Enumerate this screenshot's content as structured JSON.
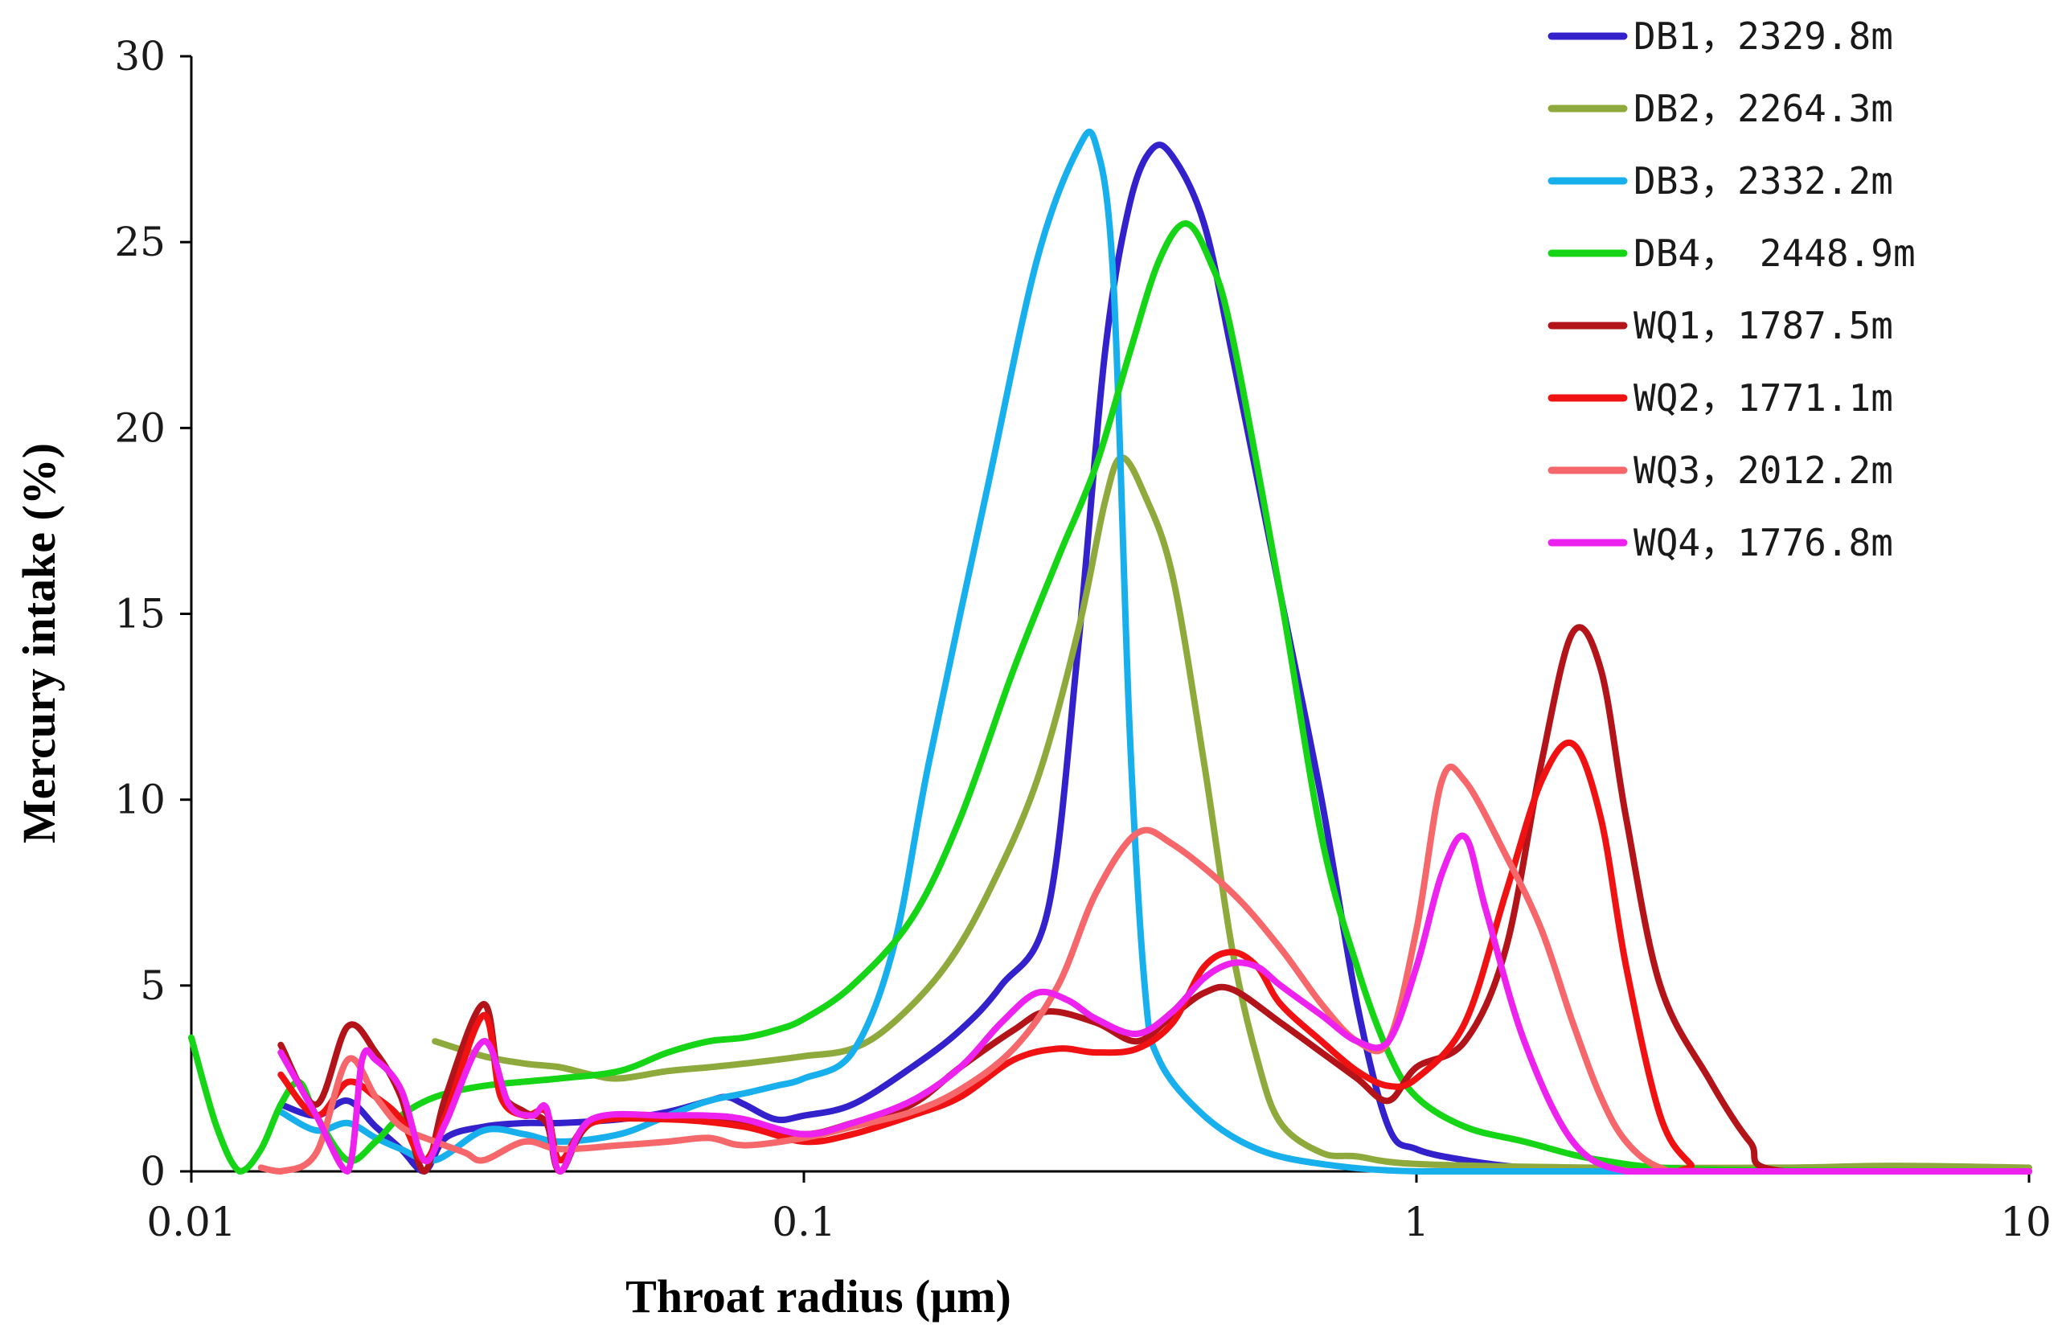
{
  "chart_data": {
    "type": "line",
    "title": "",
    "xlabel": "Throat radius (μm)",
    "ylabel": "Mercury intake (%)",
    "xscale": "log",
    "xlim": [
      0.01,
      10
    ],
    "ylim": [
      0,
      30
    ],
    "x_ticks": [
      0.01,
      0.1,
      1,
      10
    ],
    "x_tick_labels": [
      "0.01",
      "0.1",
      "1",
      "10"
    ],
    "y_ticks": [
      0,
      5,
      10,
      15,
      20,
      25,
      30
    ],
    "y_tick_labels": [
      "0",
      "5",
      "10",
      "15",
      "20",
      "25",
      "30"
    ],
    "legend_position": "top-right",
    "series": [
      {
        "name": "DB1",
        "label": "DB1，2329.8m",
        "color": "#3322cc",
        "points": [
          [
            0.014,
            1.8
          ],
          [
            0.016,
            1.5
          ],
          [
            0.018,
            1.9
          ],
          [
            0.02,
            1.2
          ],
          [
            0.022,
            0.6
          ],
          [
            0.024,
            0.0
          ],
          [
            0.026,
            0.9
          ],
          [
            0.03,
            1.2
          ],
          [
            0.035,
            1.3
          ],
          [
            0.04,
            1.3
          ],
          [
            0.05,
            1.4
          ],
          [
            0.06,
            1.6
          ],
          [
            0.07,
            1.9
          ],
          [
            0.075,
            2.0
          ],
          [
            0.08,
            1.8
          ],
          [
            0.09,
            1.4
          ],
          [
            0.1,
            1.5
          ],
          [
            0.12,
            1.8
          ],
          [
            0.15,
            2.8
          ],
          [
            0.18,
            3.8
          ],
          [
            0.21,
            5.0
          ],
          [
            0.25,
            7.0
          ],
          [
            0.28,
            14.0
          ],
          [
            0.31,
            22.0
          ],
          [
            0.34,
            26.0
          ],
          [
            0.37,
            27.5
          ],
          [
            0.4,
            27.3
          ],
          [
            0.45,
            25.5
          ],
          [
            0.5,
            22.0
          ],
          [
            0.6,
            15.5
          ],
          [
            0.7,
            10.0
          ],
          [
            0.8,
            4.5
          ],
          [
            0.9,
            1.2
          ],
          [
            1.0,
            0.6
          ],
          [
            1.2,
            0.3
          ],
          [
            1.5,
            0.1
          ],
          [
            2.0,
            0.0
          ],
          [
            5.0,
            0.0
          ],
          [
            10.0,
            0.0
          ]
        ]
      },
      {
        "name": "DB2",
        "label": "DB2，2264.3m",
        "color": "#8faa3c",
        "points": [
          [
            0.025,
            3.5
          ],
          [
            0.03,
            3.1
          ],
          [
            0.035,
            2.9
          ],
          [
            0.04,
            2.8
          ],
          [
            0.045,
            2.6
          ],
          [
            0.05,
            2.5
          ],
          [
            0.06,
            2.7
          ],
          [
            0.07,
            2.8
          ],
          [
            0.08,
            2.9
          ],
          [
            0.09,
            3.0
          ],
          [
            0.1,
            3.1
          ],
          [
            0.12,
            3.3
          ],
          [
            0.14,
            4.0
          ],
          [
            0.17,
            5.5
          ],
          [
            0.2,
            7.5
          ],
          [
            0.24,
            10.5
          ],
          [
            0.28,
            14.5
          ],
          [
            0.31,
            18.0
          ],
          [
            0.33,
            19.2
          ],
          [
            0.36,
            18.2
          ],
          [
            0.4,
            16.0
          ],
          [
            0.45,
            11.0
          ],
          [
            0.5,
            6.0
          ],
          [
            0.55,
            3.0
          ],
          [
            0.6,
            1.3
          ],
          [
            0.7,
            0.5
          ],
          [
            0.8,
            0.4
          ],
          [
            1.0,
            0.2
          ],
          [
            2.0,
            0.1
          ],
          [
            4.0,
            0.1
          ],
          [
            6.0,
            0.15
          ],
          [
            10.0,
            0.1
          ]
        ]
      },
      {
        "name": "DB3",
        "label": "DB3，2332.2m",
        "color": "#17b0ec",
        "points": [
          [
            0.014,
            1.6
          ],
          [
            0.016,
            1.1
          ],
          [
            0.018,
            1.3
          ],
          [
            0.02,
            0.9
          ],
          [
            0.022,
            0.6
          ],
          [
            0.025,
            0.3
          ],
          [
            0.03,
            1.1
          ],
          [
            0.035,
            1.0
          ],
          [
            0.04,
            0.8
          ],
          [
            0.05,
            1.0
          ],
          [
            0.06,
            1.5
          ],
          [
            0.07,
            1.9
          ],
          [
            0.08,
            2.1
          ],
          [
            0.09,
            2.3
          ],
          [
            0.1,
            2.5
          ],
          [
            0.12,
            3.2
          ],
          [
            0.14,
            6.0
          ],
          [
            0.16,
            11.0
          ],
          [
            0.2,
            18.5
          ],
          [
            0.24,
            24.5
          ],
          [
            0.28,
            27.5
          ],
          [
            0.3,
            27.6
          ],
          [
            0.32,
            24.0
          ],
          [
            0.34,
            12.0
          ],
          [
            0.36,
            5.0
          ],
          [
            0.38,
            3.0
          ],
          [
            0.45,
            1.5
          ],
          [
            0.55,
            0.6
          ],
          [
            0.7,
            0.2
          ],
          [
            1.0,
            0.0
          ],
          [
            2.0,
            0.0
          ],
          [
            10.0,
            0.0
          ]
        ]
      },
      {
        "name": "DB4",
        "label": "DB4， 2448.9m",
        "color": "#16d516",
        "points": [
          [
            0.01,
            3.6
          ],
          [
            0.011,
            1.2
          ],
          [
            0.012,
            0.0
          ],
          [
            0.013,
            0.6
          ],
          [
            0.014,
            1.8
          ],
          [
            0.015,
            2.4
          ],
          [
            0.016,
            1.5
          ],
          [
            0.018,
            0.3
          ],
          [
            0.02,
            0.8
          ],
          [
            0.022,
            1.5
          ],
          [
            0.025,
            2.0
          ],
          [
            0.03,
            2.3
          ],
          [
            0.04,
            2.5
          ],
          [
            0.05,
            2.7
          ],
          [
            0.06,
            3.2
          ],
          [
            0.07,
            3.5
          ],
          [
            0.08,
            3.6
          ],
          [
            0.09,
            3.8
          ],
          [
            0.1,
            4.1
          ],
          [
            0.12,
            5.0
          ],
          [
            0.15,
            6.8
          ],
          [
            0.18,
            9.5
          ],
          [
            0.22,
            13.5
          ],
          [
            0.26,
            16.5
          ],
          [
            0.3,
            19.0
          ],
          [
            0.34,
            22.0
          ],
          [
            0.38,
            24.5
          ],
          [
            0.42,
            25.5
          ],
          [
            0.46,
            24.5
          ],
          [
            0.5,
            22.5
          ],
          [
            0.6,
            15.5
          ],
          [
            0.7,
            9.0
          ],
          [
            0.8,
            5.5
          ],
          [
            0.9,
            3.2
          ],
          [
            1.0,
            2.0
          ],
          [
            1.2,
            1.2
          ],
          [
            1.5,
            0.8
          ],
          [
            2.0,
            0.3
          ],
          [
            3.0,
            0.05
          ],
          [
            10.0,
            0.0
          ]
        ]
      },
      {
        "name": "WQ1",
        "label": "WQ1，1787.5m",
        "color": "#b3141a",
        "points": [
          [
            0.014,
            3.4
          ],
          [
            0.016,
            1.8
          ],
          [
            0.018,
            3.9
          ],
          [
            0.02,
            3.2
          ],
          [
            0.022,
            2.0
          ],
          [
            0.024,
            0.0
          ],
          [
            0.026,
            2.0
          ],
          [
            0.03,
            4.5
          ],
          [
            0.032,
            2.2
          ],
          [
            0.035,
            1.6
          ],
          [
            0.038,
            1.3
          ],
          [
            0.04,
            0.0
          ],
          [
            0.045,
            1.3
          ],
          [
            0.06,
            1.5
          ],
          [
            0.08,
            1.3
          ],
          [
            0.1,
            1.0
          ],
          [
            0.12,
            1.3
          ],
          [
            0.15,
            1.8
          ],
          [
            0.18,
            2.8
          ],
          [
            0.22,
            3.8
          ],
          [
            0.25,
            4.3
          ],
          [
            0.3,
            4.0
          ],
          [
            0.35,
            3.5
          ],
          [
            0.4,
            4.2
          ],
          [
            0.45,
            4.8
          ],
          [
            0.5,
            4.9
          ],
          [
            0.6,
            4.0
          ],
          [
            0.7,
            3.2
          ],
          [
            0.8,
            2.5
          ],
          [
            0.9,
            1.9
          ],
          [
            1.0,
            2.8
          ],
          [
            1.2,
            3.5
          ],
          [
            1.4,
            6.0
          ],
          [
            1.6,
            11.0
          ],
          [
            1.8,
            14.5
          ],
          [
            2.0,
            13.5
          ],
          [
            2.2,
            9.5
          ],
          [
            2.5,
            5.0
          ],
          [
            3.0,
            2.5
          ],
          [
            3.5,
            0.8
          ],
          [
            4.0,
            0.0
          ],
          [
            10.0,
            0.0
          ]
        ]
      },
      {
        "name": "WQ2",
        "label": "WQ2，1771.1m",
        "color": "#f01212",
        "points": [
          [
            0.014,
            2.6
          ],
          [
            0.016,
            1.5
          ],
          [
            0.018,
            2.4
          ],
          [
            0.02,
            2.0
          ],
          [
            0.022,
            1.4
          ],
          [
            0.024,
            0.3
          ],
          [
            0.026,
            1.5
          ],
          [
            0.03,
            4.2
          ],
          [
            0.032,
            2.0
          ],
          [
            0.035,
            1.5
          ],
          [
            0.038,
            1.6
          ],
          [
            0.04,
            0.3
          ],
          [
            0.045,
            1.3
          ],
          [
            0.06,
            1.4
          ],
          [
            0.08,
            1.2
          ],
          [
            0.1,
            0.8
          ],
          [
            0.12,
            1.0
          ],
          [
            0.15,
            1.5
          ],
          [
            0.18,
            2.0
          ],
          [
            0.22,
            3.0
          ],
          [
            0.26,
            3.3
          ],
          [
            0.3,
            3.2
          ],
          [
            0.35,
            3.3
          ],
          [
            0.4,
            4.0
          ],
          [
            0.45,
            5.5
          ],
          [
            0.5,
            5.9
          ],
          [
            0.55,
            5.5
          ],
          [
            0.6,
            4.5
          ],
          [
            0.7,
            3.5
          ],
          [
            0.8,
            2.7
          ],
          [
            0.9,
            2.3
          ],
          [
            1.0,
            2.5
          ],
          [
            1.2,
            4.0
          ],
          [
            1.4,
            7.5
          ],
          [
            1.6,
            10.5
          ],
          [
            1.8,
            11.5
          ],
          [
            2.0,
            9.5
          ],
          [
            2.2,
            5.5
          ],
          [
            2.5,
            1.5
          ],
          [
            2.8,
            0.2
          ],
          [
            3.0,
            0.0
          ],
          [
            10.0,
            0.0
          ]
        ]
      },
      {
        "name": "WQ3",
        "label": "WQ3，2012.2m",
        "color": "#f5676a",
        "points": [
          [
            0.013,
            0.1
          ],
          [
            0.014,
            0.0
          ],
          [
            0.016,
            0.5
          ],
          [
            0.018,
            3.0
          ],
          [
            0.02,
            2.0
          ],
          [
            0.022,
            1.2
          ],
          [
            0.025,
            0.8
          ],
          [
            0.028,
            0.5
          ],
          [
            0.03,
            0.3
          ],
          [
            0.035,
            0.8
          ],
          [
            0.04,
            0.6
          ],
          [
            0.05,
            0.7
          ],
          [
            0.06,
            0.8
          ],
          [
            0.07,
            0.9
          ],
          [
            0.08,
            0.7
          ],
          [
            0.1,
            0.9
          ],
          [
            0.12,
            1.2
          ],
          [
            0.15,
            1.6
          ],
          [
            0.18,
            2.2
          ],
          [
            0.22,
            3.3
          ],
          [
            0.26,
            5.0
          ],
          [
            0.3,
            7.5
          ],
          [
            0.35,
            9.1
          ],
          [
            0.4,
            8.8
          ],
          [
            0.5,
            7.5
          ],
          [
            0.6,
            6.0
          ],
          [
            0.7,
            4.5
          ],
          [
            0.8,
            3.5
          ],
          [
            0.9,
            3.5
          ],
          [
            1.0,
            6.5
          ],
          [
            1.1,
            10.5
          ],
          [
            1.2,
            10.5
          ],
          [
            1.4,
            8.5
          ],
          [
            1.6,
            6.5
          ],
          [
            1.8,
            4.0
          ],
          [
            2.0,
            2.0
          ],
          [
            2.2,
            0.8
          ],
          [
            2.5,
            0.1
          ],
          [
            3.0,
            0.0
          ],
          [
            10.0,
            0.0
          ]
        ]
      },
      {
        "name": "WQ4",
        "label": "WQ4，1776.8m",
        "color": "#ee22ee",
        "points": [
          [
            0.014,
            3.2
          ],
          [
            0.016,
            1.5
          ],
          [
            0.018,
            0.0
          ],
          [
            0.019,
            3.0
          ],
          [
            0.02,
            3.0
          ],
          [
            0.022,
            2.2
          ],
          [
            0.024,
            0.3
          ],
          [
            0.026,
            1.3
          ],
          [
            0.03,
            3.5
          ],
          [
            0.033,
            1.8
          ],
          [
            0.036,
            1.5
          ],
          [
            0.038,
            1.7
          ],
          [
            0.04,
            0.0
          ],
          [
            0.045,
            1.4
          ],
          [
            0.06,
            1.5
          ],
          [
            0.07,
            1.5
          ],
          [
            0.08,
            1.4
          ],
          [
            0.1,
            1.0
          ],
          [
            0.12,
            1.3
          ],
          [
            0.15,
            1.9
          ],
          [
            0.18,
            2.8
          ],
          [
            0.21,
            4.0
          ],
          [
            0.24,
            4.8
          ],
          [
            0.27,
            4.6
          ],
          [
            0.3,
            4.1
          ],
          [
            0.35,
            3.7
          ],
          [
            0.4,
            4.3
          ],
          [
            0.45,
            5.2
          ],
          [
            0.5,
            5.6
          ],
          [
            0.55,
            5.5
          ],
          [
            0.6,
            5.0
          ],
          [
            0.7,
            4.2
          ],
          [
            0.8,
            3.5
          ],
          [
            0.9,
            3.5
          ],
          [
            1.0,
            5.5
          ],
          [
            1.1,
            8.0
          ],
          [
            1.2,
            9.0
          ],
          [
            1.3,
            7.0
          ],
          [
            1.5,
            3.5
          ],
          [
            1.8,
            0.8
          ],
          [
            2.2,
            0.0
          ],
          [
            3.0,
            0.0
          ],
          [
            10.0,
            0.0
          ]
        ]
      }
    ]
  }
}
